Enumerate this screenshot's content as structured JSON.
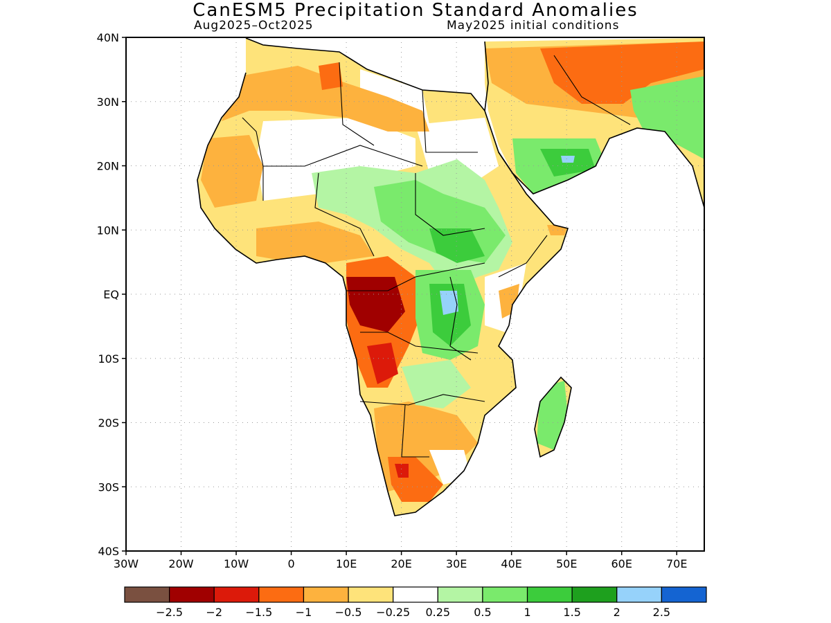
{
  "title": "CanESM5 Precipitation Standard Anomalies",
  "subtitle_period": "Aug2025–Oct2025",
  "subtitle_init": "May2025 initial conditions",
  "map": {
    "lat_labels": [
      {
        "lat": 40,
        "text": "40N"
      },
      {
        "lat": 30,
        "text": "30N"
      },
      {
        "lat": 20,
        "text": "20N"
      },
      {
        "lat": 10,
        "text": "10N"
      },
      {
        "lat": 0,
        "text": "EQ"
      },
      {
        "lat": -10,
        "text": "10S"
      },
      {
        "lat": -20,
        "text": "20S"
      },
      {
        "lat": -30,
        "text": "30S"
      },
      {
        "lat": -40,
        "text": "40S"
      }
    ],
    "lon_labels": [
      {
        "lon": -30,
        "text": "30W"
      },
      {
        "lon": -20,
        "text": "20W"
      },
      {
        "lon": -10,
        "text": "10W"
      },
      {
        "lon": 0,
        "text": "0"
      },
      {
        "lon": 10,
        "text": "10E"
      },
      {
        "lon": 20,
        "text": "20E"
      },
      {
        "lon": 30,
        "text": "30E"
      },
      {
        "lon": 40,
        "text": "40E"
      },
      {
        "lon": 50,
        "text": "50E"
      },
      {
        "lon": 60,
        "text": "60E"
      },
      {
        "lon": 70,
        "text": "70E"
      }
    ],
    "lon_range": [
      -30,
      75
    ],
    "lat_range": [
      -40,
      40
    ],
    "grid": true
  },
  "colorbar": {
    "colors": [
      "#7a5040",
      "#a00000",
      "#dc1a0a",
      "#fc6c12",
      "#fdb23e",
      "#fee37a",
      "#ffffff",
      "#b4f5a4",
      "#7aea6c",
      "#3ccc3c",
      "#1ea01e",
      "#96d2fa",
      "#1464d2"
    ],
    "labels": [
      "−2.5",
      "−2",
      "−1.5",
      "−1",
      "−0.5",
      "−0.25",
      "0.25",
      "0.5",
      "1",
      "1.5",
      "2",
      "2.5"
    ]
  },
  "colors": {
    "coast": "#000000",
    "ocean": "#ffffff",
    "dry_strong": "#a00000",
    "dry": "#fc6c12",
    "dry_mild": "#fdb23e",
    "wet": "#7aea6c",
    "wet_strong": "#3ccc3c"
  }
}
